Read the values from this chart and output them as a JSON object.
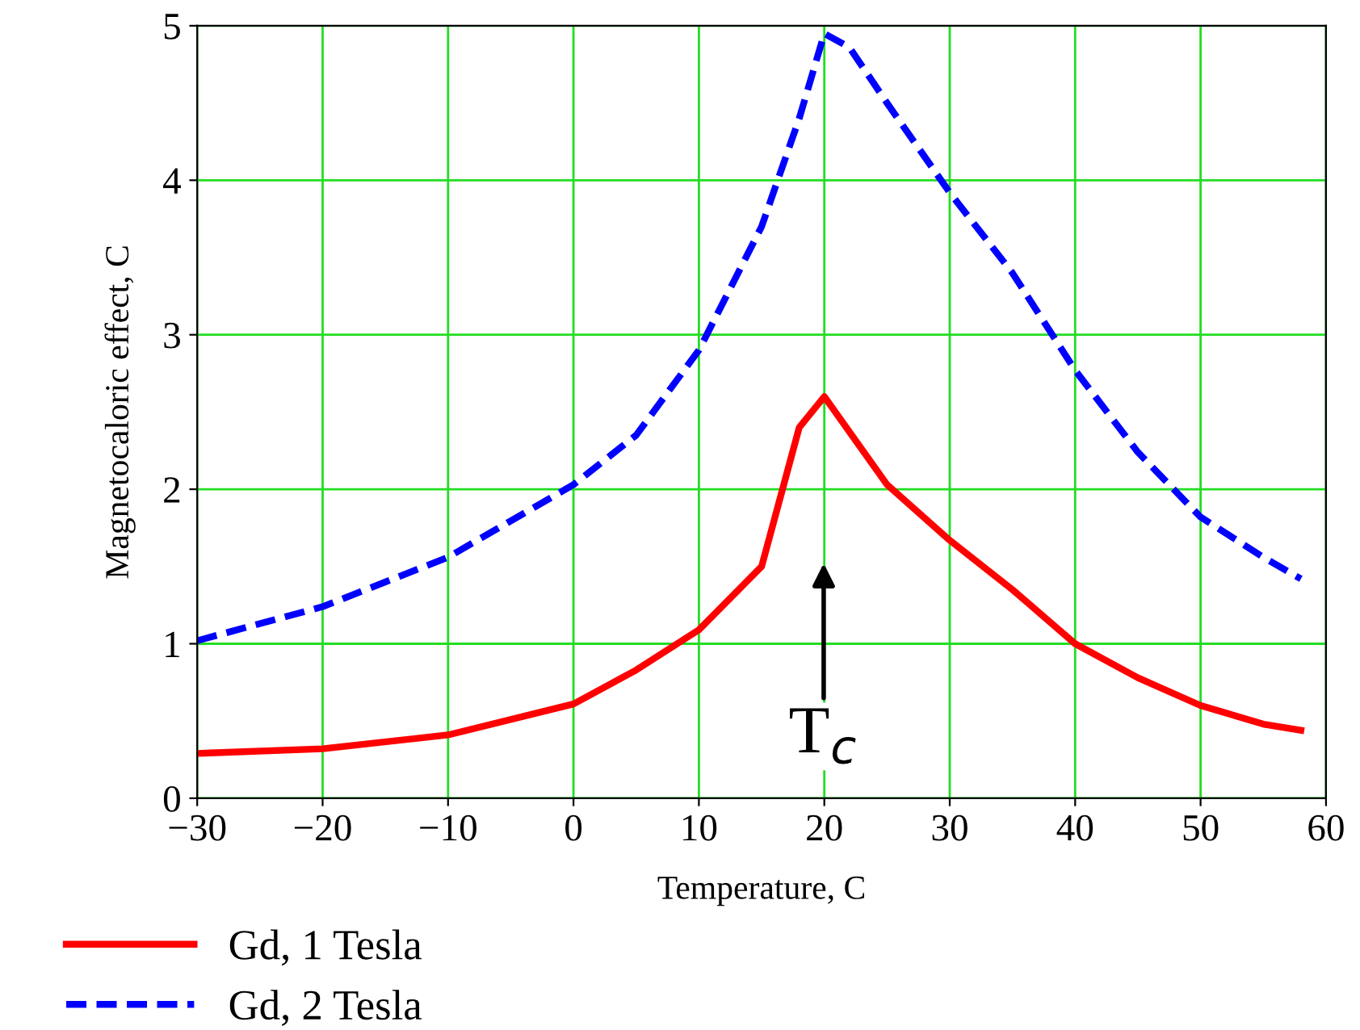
{
  "chart_data": {
    "type": "line",
    "xlabel": "Temperature, C",
    "ylabel": "Magnetocaloric effect, C",
    "xlim": [
      -30,
      60
    ],
    "ylim": [
      0,
      5
    ],
    "xticks": [
      -30,
      -20,
      -10,
      0,
      10,
      20,
      30,
      40,
      50,
      60
    ],
    "yticks": [
      0,
      1,
      2,
      3,
      4,
      5
    ],
    "grid": true,
    "legend": "bottom",
    "marker": "none",
    "series": [
      {
        "name": "Gd, 1 Tesla",
        "color": "#ff0000",
        "line_style": "solid",
        "x": [
          -30,
          -20,
          -10,
          0,
          5,
          10,
          15,
          18,
          20,
          25,
          30,
          35,
          40,
          45,
          50,
          55,
          58
        ],
        "values": [
          0.29,
          0.32,
          0.41,
          0.61,
          0.83,
          1.09,
          1.5,
          2.4,
          2.6,
          2.03,
          1.67,
          1.35,
          1.0,
          0.78,
          0.6,
          0.48,
          0.44
        ]
      },
      {
        "name": "Gd, 2 Tesla",
        "color": "#0000ff",
        "line_style": "dashed",
        "x": [
          -30,
          -20,
          -10,
          0,
          5,
          10,
          15,
          18,
          20,
          22,
          25,
          30,
          35,
          40,
          45,
          50,
          55,
          58
        ],
        "values": [
          1.02,
          1.24,
          1.56,
          2.03,
          2.35,
          2.9,
          3.7,
          4.4,
          4.95,
          4.86,
          4.5,
          3.92,
          3.4,
          2.77,
          2.24,
          1.82,
          1.56,
          1.42
        ]
      }
    ],
    "annotations": [
      "T$_{c}$"
    ]
  }
}
